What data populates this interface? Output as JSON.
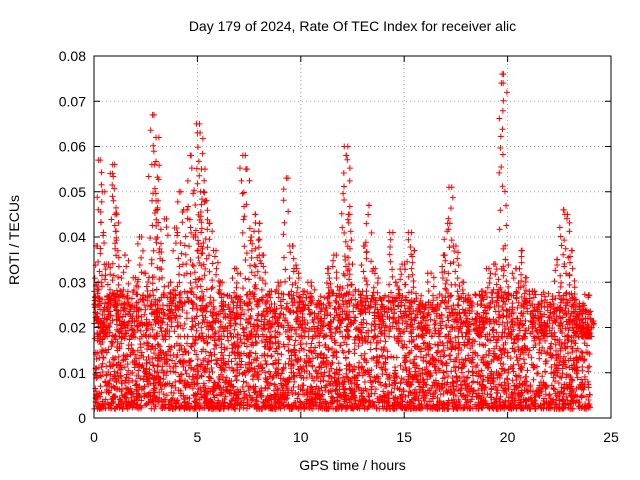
{
  "chart_data": {
    "type": "scatter",
    "title": "Day 179 of 2024, Rate Of TEC Index for receiver alic",
    "xlabel": "GPS time / hours",
    "ylabel": "ROTI / TECUs",
    "xlim": [
      0,
      25
    ],
    "ylim": [
      0,
      0.08
    ],
    "x_ticks": [
      "0",
      "5",
      "10",
      "15",
      "20",
      "25"
    ],
    "y_ticks": [
      "0",
      "0.01",
      "0.02",
      "0.03",
      "0.04",
      "0.05",
      "0.06",
      "0.07",
      "0.08"
    ],
    "grid": true,
    "marker": "+",
    "color": "#ff0000",
    "series": [
      {
        "name": "ROTI",
        "x": [
          0.1,
          0.2,
          0.3,
          0.4,
          0.5,
          0.7,
          0.9,
          1.0,
          1.1,
          1.3,
          1.5,
          1.7,
          2.0,
          2.2,
          2.5,
          2.8,
          2.9,
          3.0,
          3.1,
          3.4,
          3.7,
          4.0,
          4.2,
          4.5,
          4.7,
          4.9,
          5.0,
          5.1,
          5.2,
          5.3,
          5.4,
          5.6,
          5.9,
          6.2,
          6.5,
          6.8,
          7.2,
          7.4,
          7.6,
          7.8,
          8.0,
          8.2,
          8.5,
          8.9,
          9.3,
          9.6,
          9.8,
          10.1,
          10.5,
          10.9,
          11.3,
          11.6,
          11.9,
          12.1,
          12.2,
          12.3,
          12.5,
          12.8,
          13.1,
          13.3,
          13.6,
          13.9,
          14.3,
          14.6,
          14.9,
          15.2,
          15.5,
          15.9,
          16.3,
          16.6,
          16.9,
          17.1,
          17.3,
          17.5,
          17.8,
          18.1,
          18.5,
          18.8,
          19.1,
          19.4,
          19.7,
          19.8,
          19.9,
          20.1,
          20.4,
          20.7,
          20.9,
          21.2,
          21.5,
          21.8,
          22.1,
          22.4,
          22.7,
          22.9,
          23.1,
          23.3,
          23.5,
          23.7,
          23.9,
          24.0
        ],
        "y": [
          0.038,
          0.03,
          0.057,
          0.05,
          0.022,
          0.034,
          0.054,
          0.056,
          0.045,
          0.028,
          0.036,
          0.025,
          0.031,
          0.04,
          0.032,
          0.056,
          0.067,
          0.062,
          0.048,
          0.044,
          0.03,
          0.042,
          0.05,
          0.046,
          0.058,
          0.04,
          0.063,
          0.065,
          0.055,
          0.05,
          0.048,
          0.043,
          0.037,
          0.03,
          0.025,
          0.033,
          0.058,
          0.055,
          0.04,
          0.045,
          0.043,
          0.036,
          0.028,
          0.03,
          0.053,
          0.038,
          0.033,
          0.028,
          0.03,
          0.025,
          0.033,
          0.036,
          0.029,
          0.06,
          0.058,
          0.045,
          0.034,
          0.028,
          0.038,
          0.047,
          0.033,
          0.025,
          0.041,
          0.03,
          0.034,
          0.041,
          0.037,
          0.025,
          0.032,
          0.025,
          0.036,
          0.043,
          0.051,
          0.038,
          0.03,
          0.026,
          0.022,
          0.028,
          0.033,
          0.034,
          0.074,
          0.076,
          0.035,
          0.024,
          0.033,
          0.037,
          0.031,
          0.028,
          0.025,
          0.021,
          0.025,
          0.035,
          0.046,
          0.045,
          0.037,
          0.025,
          0.024,
          0.02,
          0.018,
          0.022
        ],
        "x_start": 0.0,
        "x_end": 24.0,
        "baseline_min": 0.002,
        "baseline_max": 0.022
      }
    ]
  }
}
